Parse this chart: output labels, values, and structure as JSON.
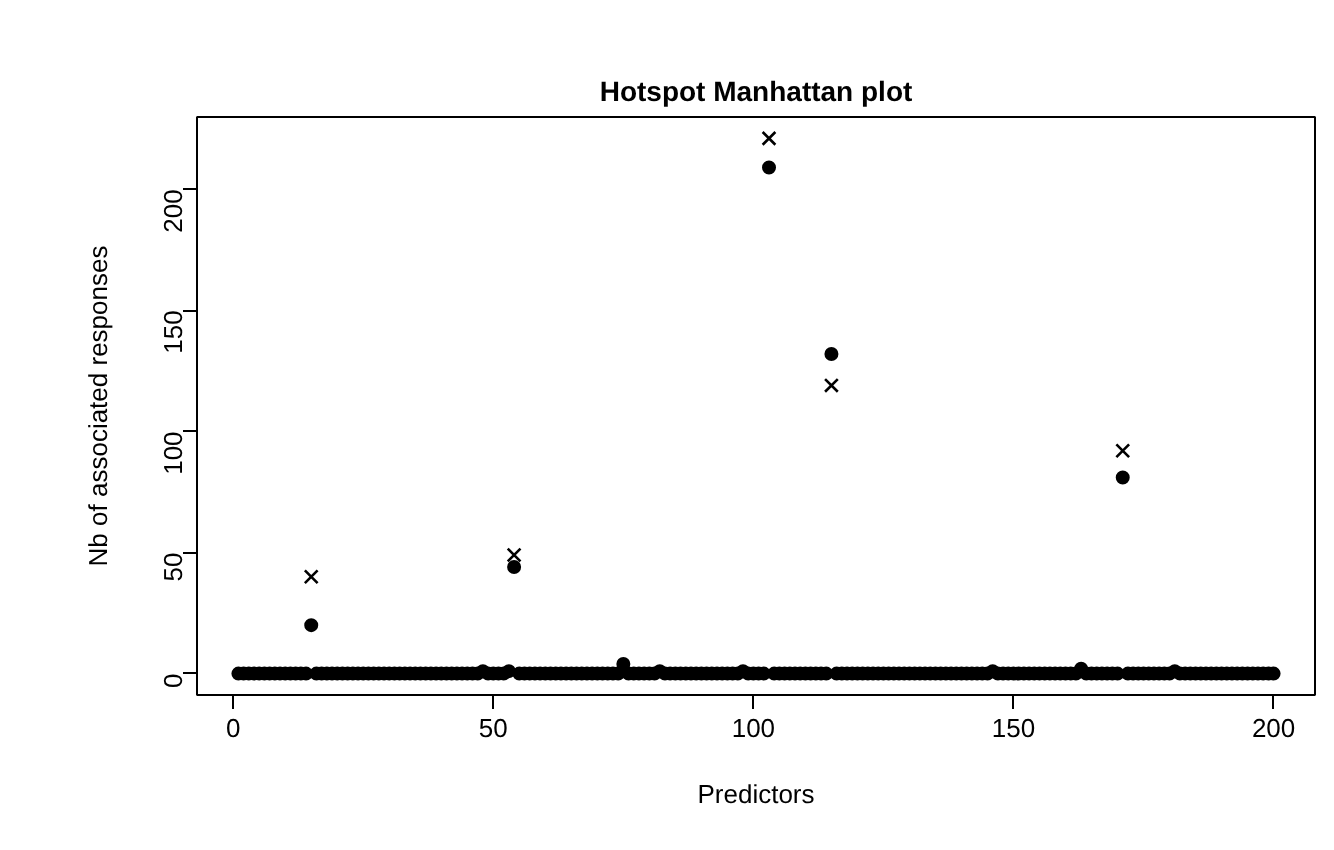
{
  "chart_data": {
    "type": "scatter",
    "title": "Hotspot Manhattan plot",
    "xlabel": "Predictors",
    "ylabel": "Nb of associated responses",
    "xlim": [
      -6.96,
      207.96
    ],
    "ylim": [
      -8.84,
      229.84
    ],
    "xticks": [
      0,
      50,
      100,
      150,
      200
    ],
    "yticks": [
      0,
      50,
      100,
      150,
      200
    ],
    "grid": false,
    "series": [
      {
        "color": "#000000",
        "marker": "circle",
        "x": [
          1,
          2,
          3,
          4,
          5,
          6,
          7,
          8,
          9,
          10,
          11,
          12,
          13,
          14,
          15,
          16,
          17,
          18,
          19,
          20,
          21,
          22,
          23,
          24,
          25,
          26,
          27,
          28,
          29,
          30,
          31,
          32,
          33,
          34,
          35,
          36,
          37,
          38,
          39,
          40,
          41,
          42,
          43,
          44,
          45,
          46,
          47,
          48,
          49,
          50,
          51,
          52,
          53,
          54,
          55,
          56,
          57,
          58,
          59,
          60,
          61,
          62,
          63,
          64,
          65,
          66,
          67,
          68,
          69,
          70,
          71,
          72,
          73,
          74,
          75,
          76,
          77,
          78,
          79,
          80,
          81,
          82,
          83,
          84,
          85,
          86,
          87,
          88,
          89,
          90,
          91,
          92,
          93,
          94,
          95,
          96,
          97,
          98,
          99,
          100,
          101,
          102,
          103,
          104,
          105,
          106,
          107,
          108,
          109,
          110,
          111,
          112,
          113,
          114,
          115,
          116,
          117,
          118,
          119,
          120,
          121,
          122,
          123,
          124,
          125,
          126,
          127,
          128,
          129,
          130,
          131,
          132,
          133,
          134,
          135,
          136,
          137,
          138,
          139,
          140,
          141,
          142,
          143,
          144,
          145,
          146,
          147,
          148,
          149,
          150,
          151,
          152,
          153,
          154,
          155,
          156,
          157,
          158,
          159,
          160,
          161,
          162,
          163,
          164,
          165,
          166,
          167,
          168,
          169,
          170,
          171,
          172,
          173,
          174,
          175,
          176,
          177,
          178,
          179,
          180,
          181,
          182,
          183,
          184,
          185,
          186,
          187,
          188,
          189,
          190,
          191,
          192,
          193,
          194,
          195,
          196,
          197,
          198,
          199,
          200
        ],
        "values": [
          0,
          0,
          0,
          0,
          0,
          0,
          0,
          0,
          0,
          0,
          0,
          0,
          0,
          0,
          20,
          0,
          0,
          0,
          0,
          0,
          0,
          0,
          0,
          0,
          0,
          0,
          0,
          0,
          0,
          0,
          0,
          0,
          0,
          0,
          0,
          0,
          0,
          0,
          0,
          0,
          0,
          0,
          0,
          0,
          0,
          0,
          0,
          1,
          0,
          0,
          0,
          0,
          1,
          44,
          0,
          0,
          0,
          0,
          0,
          0,
          0,
          0,
          0,
          0,
          0,
          0,
          0,
          0,
          0,
          0,
          0,
          0,
          0,
          0,
          4,
          0,
          0,
          0,
          0,
          0,
          0,
          1,
          0,
          0,
          0,
          0,
          0,
          0,
          0,
          0,
          0,
          0,
          0,
          0,
          0,
          0,
          0,
          1,
          0,
          0,
          0,
          0,
          209,
          0,
          0,
          0,
          0,
          0,
          0,
          0,
          0,
          0,
          0,
          0,
          132,
          0,
          0,
          0,
          0,
          0,
          0,
          0,
          0,
          0,
          0,
          0,
          0,
          0,
          0,
          0,
          0,
          0,
          0,
          0,
          0,
          0,
          0,
          0,
          0,
          0,
          0,
          0,
          0,
          0,
          0,
          1,
          0,
          0,
          0,
          0,
          0,
          0,
          0,
          0,
          0,
          0,
          0,
          0,
          0,
          0,
          0,
          0,
          2,
          0,
          0,
          0,
          0,
          0,
          0,
          0,
          81,
          0,
          0,
          0,
          0,
          0,
          0,
          0,
          0,
          0,
          1,
          0,
          0,
          0,
          0,
          0,
          0,
          0,
          0,
          0,
          0,
          0,
          0,
          0,
          0,
          0,
          0,
          0,
          0,
          0
        ]
      },
      {
        "color": "#000000",
        "marker": "cross",
        "x": [
          15,
          54,
          103,
          115,
          171
        ],
        "values": [
          40,
          49,
          221,
          119,
          92
        ]
      }
    ]
  }
}
